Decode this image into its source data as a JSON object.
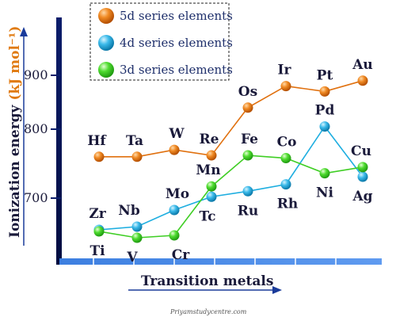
{
  "chart_data": {
    "type": "line",
    "xlabel": "Transition metals",
    "ylabel": "Ionization energy",
    "ylabel_unit": "(kJ mol⁻¹)",
    "ylim": [
      620,
      1000
    ],
    "yticks": [
      700,
      800,
      900
    ],
    "grid": false,
    "legend_position": "top-left",
    "watermark": "Priyamstudycentre.com",
    "colors": {
      "5d": "#e0700e",
      "4d": "#1eaee0",
      "3d": "#3fce24"
    },
    "series": [
      {
        "name": "5d series elements",
        "key": "5d",
        "labels": [
          "Hf",
          "Ta",
          "W",
          "Re",
          "Os",
          "Ir",
          "Pt",
          "Au"
        ],
        "values": [
          760,
          760,
          770,
          762,
          840,
          880,
          870,
          890
        ]
      },
      {
        "name": "4d series elements",
        "key": "4d",
        "labels": [
          "Zr",
          "Nb",
          "Mo",
          "Tc",
          "Ru",
          "Rh",
          "Pd",
          "Ag"
        ],
        "values": [
          660,
          664,
          685,
          702,
          710,
          720,
          805,
          731
        ]
      },
      {
        "name": "3d series elements",
        "key": "3d",
        "labels": [
          "Ti",
          "V",
          "Cr",
          "Mn",
          "Fe",
          "Co",
          "Ni",
          "Cu"
        ],
        "values": [
          658,
          650,
          653,
          717,
          762,
          758,
          736,
          745
        ]
      }
    ]
  }
}
